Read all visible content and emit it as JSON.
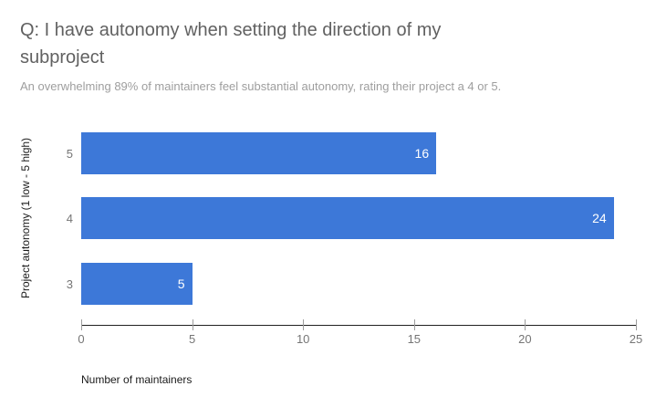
{
  "chart_data": {
    "type": "bar",
    "orientation": "horizontal",
    "title": "Q: I have autonomy when setting the direction of my subproject",
    "subtitle": "An overwhelming 89% of maintainers feel substantial autonomy, rating their project a 4 or 5.",
    "categories": [
      "5",
      "4",
      "3"
    ],
    "values": [
      16,
      24,
      5
    ],
    "bar_labels": [
      "16",
      "24",
      "5"
    ],
    "xlabel": "Number of maintainers",
    "ylabel": "Project autonomy (1 low - 5 high)",
    "xlim": [
      0,
      25
    ],
    "xticks": [
      0,
      5,
      10,
      15,
      20,
      25
    ],
    "grid": false,
    "legend": "none",
    "colors": {
      "bar": "#3d78d8",
      "bar_value_label": "#ffffff",
      "title": "#616161",
      "subtitle": "#9e9e9e",
      "tick_label": "#757575",
      "category_label": "#757575",
      "axis_line": "#212121",
      "axis_title": "#1a1a1a",
      "background": "#ffffff"
    }
  }
}
